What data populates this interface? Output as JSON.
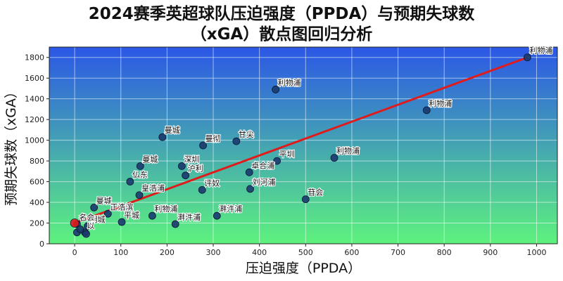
{
  "chart_data": {
    "type": "scatter",
    "title_line1": "2024赛季英超球队压迫强度（PPDA）与预期失球数",
    "title_line2": "（xGA）散点图回归分析",
    "xlabel": "压迫强度（PPDA）",
    "ylabel": "预期失球数（xGA）",
    "xlim": [
      -55,
      1045
    ],
    "ylim": [
      0,
      1900
    ],
    "xticks": [
      0,
      100,
      200,
      300,
      400,
      500,
      600,
      700,
      800,
      900,
      1000
    ],
    "yticks": [
      0,
      200,
      400,
      600,
      800,
      1000,
      1200,
      1400,
      1600,
      1800
    ],
    "grid": true,
    "background_gradient": [
      "#2b57e6",
      "#5ef27e"
    ],
    "point_color": "#1a3a6e",
    "highlight_color": "#e01b1b",
    "regression_color": "#e01b1b",
    "regression_line": {
      "x": [
        0,
        980
      ],
      "y": [
        200,
        1800
      ]
    },
    "points": [
      {
        "x": 980,
        "y": 1800,
        "label": "利物浦"
      },
      {
        "x": 435,
        "y": 1490,
        "label": "利物浦"
      },
      {
        "x": 762,
        "y": 1290,
        "label": "利物浦"
      },
      {
        "x": 190,
        "y": 1030,
        "label": "曼城"
      },
      {
        "x": 278,
        "y": 950,
        "label": "曼彻"
      },
      {
        "x": 350,
        "y": 990,
        "label": "甘尖"
      },
      {
        "x": 438,
        "y": 800,
        "label": "平圳"
      },
      {
        "x": 562,
        "y": 830,
        "label": "利物浦"
      },
      {
        "x": 142,
        "y": 750,
        "label": "曼城"
      },
      {
        "x": 232,
        "y": 750,
        "label": "深圳"
      },
      {
        "x": 240,
        "y": 660,
        "label": "沪利"
      },
      {
        "x": 378,
        "y": 690,
        "label": "卓合浦"
      },
      {
        "x": 120,
        "y": 600,
        "label": "仏东"
      },
      {
        "x": 276,
        "y": 520,
        "label": "评奴"
      },
      {
        "x": 380,
        "y": 530,
        "label": "刘河浦"
      },
      {
        "x": 140,
        "y": 470,
        "label": "皇浩浦"
      },
      {
        "x": 500,
        "y": 430,
        "label": "苷会"
      },
      {
        "x": 42,
        "y": 350,
        "label": "曼城"
      },
      {
        "x": 72,
        "y": 290,
        "label": "正浩滨"
      },
      {
        "x": 168,
        "y": 270,
        "label": "利物浦"
      },
      {
        "x": 308,
        "y": 270,
        "label": "溿汼浦"
      },
      {
        "x": 102,
        "y": 210,
        "label": "平城"
      },
      {
        "x": 218,
        "y": 190,
        "label": "溿汼浦"
      },
      {
        "x": 28,
        "y": 170,
        "label": "明城"
      },
      {
        "x": 5,
        "y": 190,
        "label": "名会"
      },
      {
        "x": 22,
        "y": 110,
        "label": "以"
      },
      {
        "x": 5,
        "y": 110,
        "label": ""
      },
      {
        "x": 25,
        "y": 95,
        "label": ""
      },
      {
        "x": 12,
        "y": 140,
        "label": ""
      },
      {
        "x": 0,
        "y": 200,
        "label": "",
        "highlight": true
      }
    ]
  }
}
